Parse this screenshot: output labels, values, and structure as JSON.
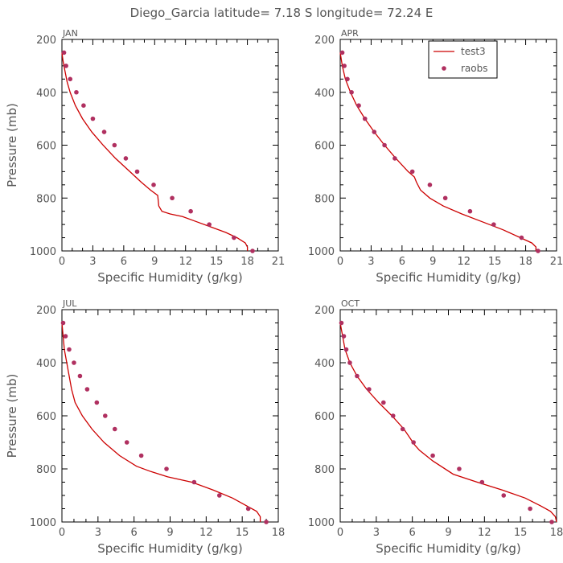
{
  "title": "Diego_Garcia  latitude= 7.18 S longitude= 72.24 E",
  "colors": {
    "model": "#cc0000",
    "obs": "#b03060",
    "text": "#555555"
  },
  "legend": {
    "placement": "top-right of APR panel",
    "model_label": "test3",
    "obs_label": "raobs"
  },
  "chart_data": [
    {
      "type": "line",
      "panel": "JAN",
      "xlabel": "Specific Humidity (g/kg)",
      "ylabel": "Pressure (mb)",
      "xlim": [
        0,
        21
      ],
      "xticks": [
        0,
        3,
        6,
        9,
        12,
        15,
        18,
        21
      ],
      "ylim": [
        200,
        1000
      ],
      "yticks": [
        200,
        400,
        600,
        800,
        1000
      ],
      "y_inverted": true,
      "series": [
        {
          "name": "test3",
          "kind": "line",
          "x": [
            0.0,
            0.1,
            0.3,
            0.5,
            0.8,
            1.3,
            2.0,
            2.9,
            4.0,
            5.2,
            6.6,
            7.7,
            8.6,
            9.3,
            9.4,
            9.7,
            10.5,
            11.7,
            13.1,
            14.5,
            15.9,
            17.0,
            17.8,
            18.0,
            18.0
          ],
          "y": [
            250,
            280,
            320,
            360,
            400,
            450,
            500,
            550,
            600,
            650,
            700,
            740,
            770,
            790,
            830,
            850,
            860,
            870,
            890,
            910,
            930,
            950,
            970,
            985,
            1000
          ]
        },
        {
          "name": "raobs",
          "kind": "scatter",
          "x": [
            0.2,
            0.4,
            0.8,
            1.4,
            2.1,
            3.0,
            4.1,
            5.1,
            6.2,
            7.3,
            8.9,
            10.7,
            12.5,
            14.3,
            16.7,
            18.5
          ],
          "y": [
            250,
            300,
            350,
            400,
            450,
            500,
            550,
            600,
            650,
            700,
            750,
            800,
            850,
            900,
            950,
            1000
          ]
        }
      ]
    },
    {
      "type": "line",
      "panel": "APR",
      "xlabel": "Specific Humidity (g/kg)",
      "ylabel": "",
      "xlim": [
        0,
        21
      ],
      "xticks": [
        0,
        3,
        6,
        9,
        12,
        15,
        18,
        21
      ],
      "ylim": [
        200,
        1000
      ],
      "yticks": [
        200,
        400,
        600,
        800,
        1000
      ],
      "y_inverted": true,
      "series": [
        {
          "name": "test3",
          "kind": "line",
          "x": [
            0.0,
            0.2,
            0.5,
            1.0,
            1.6,
            2.4,
            3.3,
            4.3,
            5.4,
            6.6,
            7.2,
            7.4,
            7.8,
            8.7,
            10.0,
            11.8,
            13.8,
            15.8,
            17.5,
            18.6,
            19.0,
            19.0
          ],
          "y": [
            250,
            300,
            350,
            400,
            450,
            500,
            550,
            600,
            650,
            700,
            720,
            740,
            770,
            800,
            830,
            860,
            890,
            920,
            950,
            970,
            985,
            1000
          ]
        },
        {
          "name": "raobs",
          "kind": "scatter",
          "x": [
            0.2,
            0.4,
            0.7,
            1.1,
            1.8,
            2.4,
            3.3,
            4.3,
            5.3,
            7.0,
            8.7,
            10.2,
            12.6,
            14.9,
            17.6,
            19.2
          ],
          "y": [
            250,
            300,
            350,
            400,
            450,
            500,
            550,
            600,
            650,
            700,
            750,
            800,
            850,
            900,
            950,
            1000
          ]
        }
      ]
    },
    {
      "type": "line",
      "panel": "JUL",
      "xlabel": "Specific Humidity (g/kg)",
      "ylabel": "Pressure (mb)",
      "xlim": [
        0,
        18
      ],
      "xticks": [
        0,
        3,
        6,
        9,
        12,
        15,
        18
      ],
      "ylim": [
        200,
        1000
      ],
      "yticks": [
        200,
        400,
        600,
        800,
        1000
      ],
      "y_inverted": true,
      "series": [
        {
          "name": "test3",
          "kind": "line",
          "x": [
            0.0,
            0.1,
            0.2,
            0.4,
            0.6,
            0.8,
            1.1,
            1.7,
            2.5,
            3.5,
            4.8,
            6.2,
            7.4,
            8.8,
            10.8,
            12.6,
            14.2,
            15.4,
            16.2,
            16.5,
            16.5
          ],
          "y": [
            250,
            300,
            350,
            400,
            450,
            500,
            550,
            600,
            650,
            700,
            750,
            790,
            810,
            830,
            850,
            880,
            910,
            940,
            960,
            980,
            1000
          ]
        },
        {
          "name": "raobs",
          "kind": "scatter",
          "x": [
            0.1,
            0.3,
            0.6,
            1.0,
            1.5,
            2.1,
            2.9,
            3.6,
            4.4,
            5.4,
            6.6,
            8.7,
            11.0,
            13.1,
            15.5,
            17.0
          ],
          "y": [
            250,
            300,
            350,
            400,
            450,
            500,
            550,
            600,
            650,
            700,
            750,
            800,
            850,
            900,
            950,
            1000
          ]
        }
      ]
    },
    {
      "type": "line",
      "panel": "OCT",
      "xlabel": "Specific Humidity (g/kg)",
      "ylabel": "",
      "xlim": [
        0,
        18
      ],
      "xticks": [
        0,
        3,
        6,
        9,
        12,
        15,
        18
      ],
      "ylim": [
        200,
        1000
      ],
      "yticks": [
        200,
        400,
        600,
        800,
        1000
      ],
      "y_inverted": true,
      "series": [
        {
          "name": "test3",
          "kind": "line",
          "x": [
            0.0,
            0.2,
            0.4,
            0.8,
            1.4,
            2.2,
            3.2,
            4.3,
            5.3,
            5.9,
            6.2,
            6.6,
            7.7,
            9.4,
            11.4,
            13.5,
            15.4,
            16.7,
            17.5,
            17.9,
            18.0
          ],
          "y": [
            250,
            300,
            350,
            400,
            450,
            500,
            550,
            600,
            650,
            690,
            710,
            730,
            770,
            820,
            850,
            880,
            910,
            940,
            960,
            980,
            1000
          ]
        },
        {
          "name": "raobs",
          "kind": "scatter",
          "x": [
            0.1,
            0.3,
            0.5,
            0.8,
            1.4,
            2.4,
            3.6,
            4.4,
            5.2,
            6.1,
            7.7,
            9.9,
            11.8,
            13.6,
            15.8,
            17.6
          ],
          "y": [
            250,
            300,
            350,
            400,
            450,
            500,
            550,
            600,
            650,
            700,
            750,
            800,
            850,
            900,
            950,
            1000
          ]
        }
      ]
    }
  ]
}
